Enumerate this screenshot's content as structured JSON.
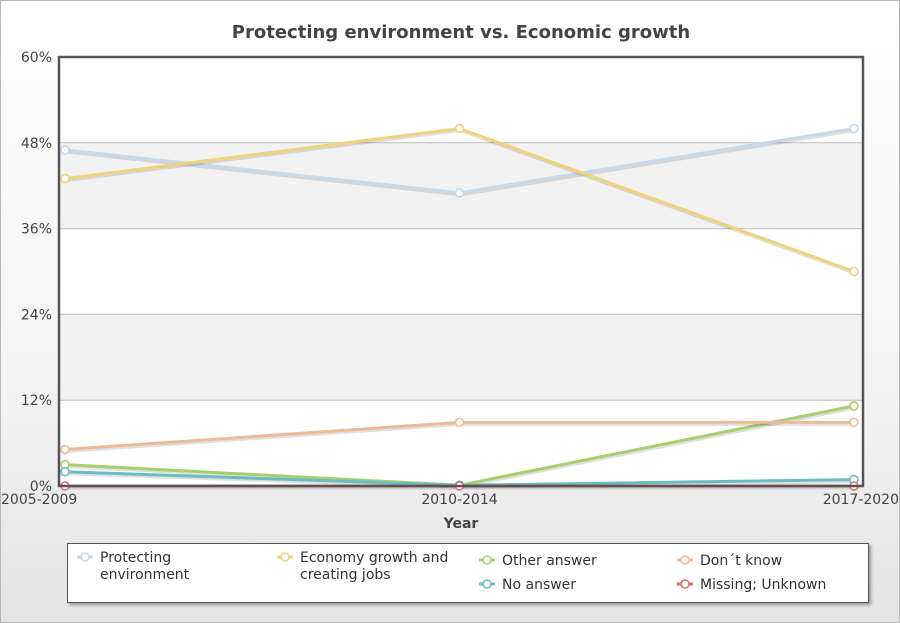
{
  "chart_data": {
    "type": "line",
    "title": "Protecting environment vs. Economic growth",
    "xlabel": "Year",
    "ylabel": "",
    "categories": [
      "2005-2009",
      "2010-2014",
      "2017-2020"
    ],
    "ylim": [
      0,
      60
    ],
    "yticks": [
      "0%",
      "12%",
      "24%",
      "36%",
      "48%",
      "60%"
    ],
    "grid": true,
    "legend_position": "bottom",
    "series": [
      {
        "name": "Protecting environment",
        "values": [
          47,
          41,
          50
        ],
        "color": "#c6d9ea"
      },
      {
        "name": "Economy growth and creating jobs",
        "values": [
          43,
          50,
          30
        ],
        "color": "#f0d278"
      },
      {
        "name": "Other answer",
        "values": [
          3,
          0.1,
          11.2
        ],
        "color": "#a8cf6e"
      },
      {
        "name": "Don´t know",
        "values": [
          5.1,
          8.9,
          8.9
        ],
        "color": "#f0b996"
      },
      {
        "name": "No answer",
        "values": [
          2,
          0.1,
          0.9
        ],
        "color": "#6bbcc0"
      },
      {
        "name": "Missing; Unknown",
        "values": [
          0,
          0,
          0
        ],
        "color": "#d9706e"
      }
    ]
  },
  "legend": {
    "items": [
      {
        "label": "Protecting\nenvironment",
        "color": "#c6d9ea"
      },
      {
        "label": "Economy growth and\ncreating jobs",
        "color": "#f0d278"
      },
      {
        "label": "Other answer",
        "color": "#a8cf6e"
      },
      {
        "label": "Don´t know",
        "color": "#f0b996"
      },
      {
        "label": "No answer",
        "color": "#6bbcc0"
      },
      {
        "label": "Missing; Unknown",
        "color": "#d9706e"
      }
    ]
  }
}
